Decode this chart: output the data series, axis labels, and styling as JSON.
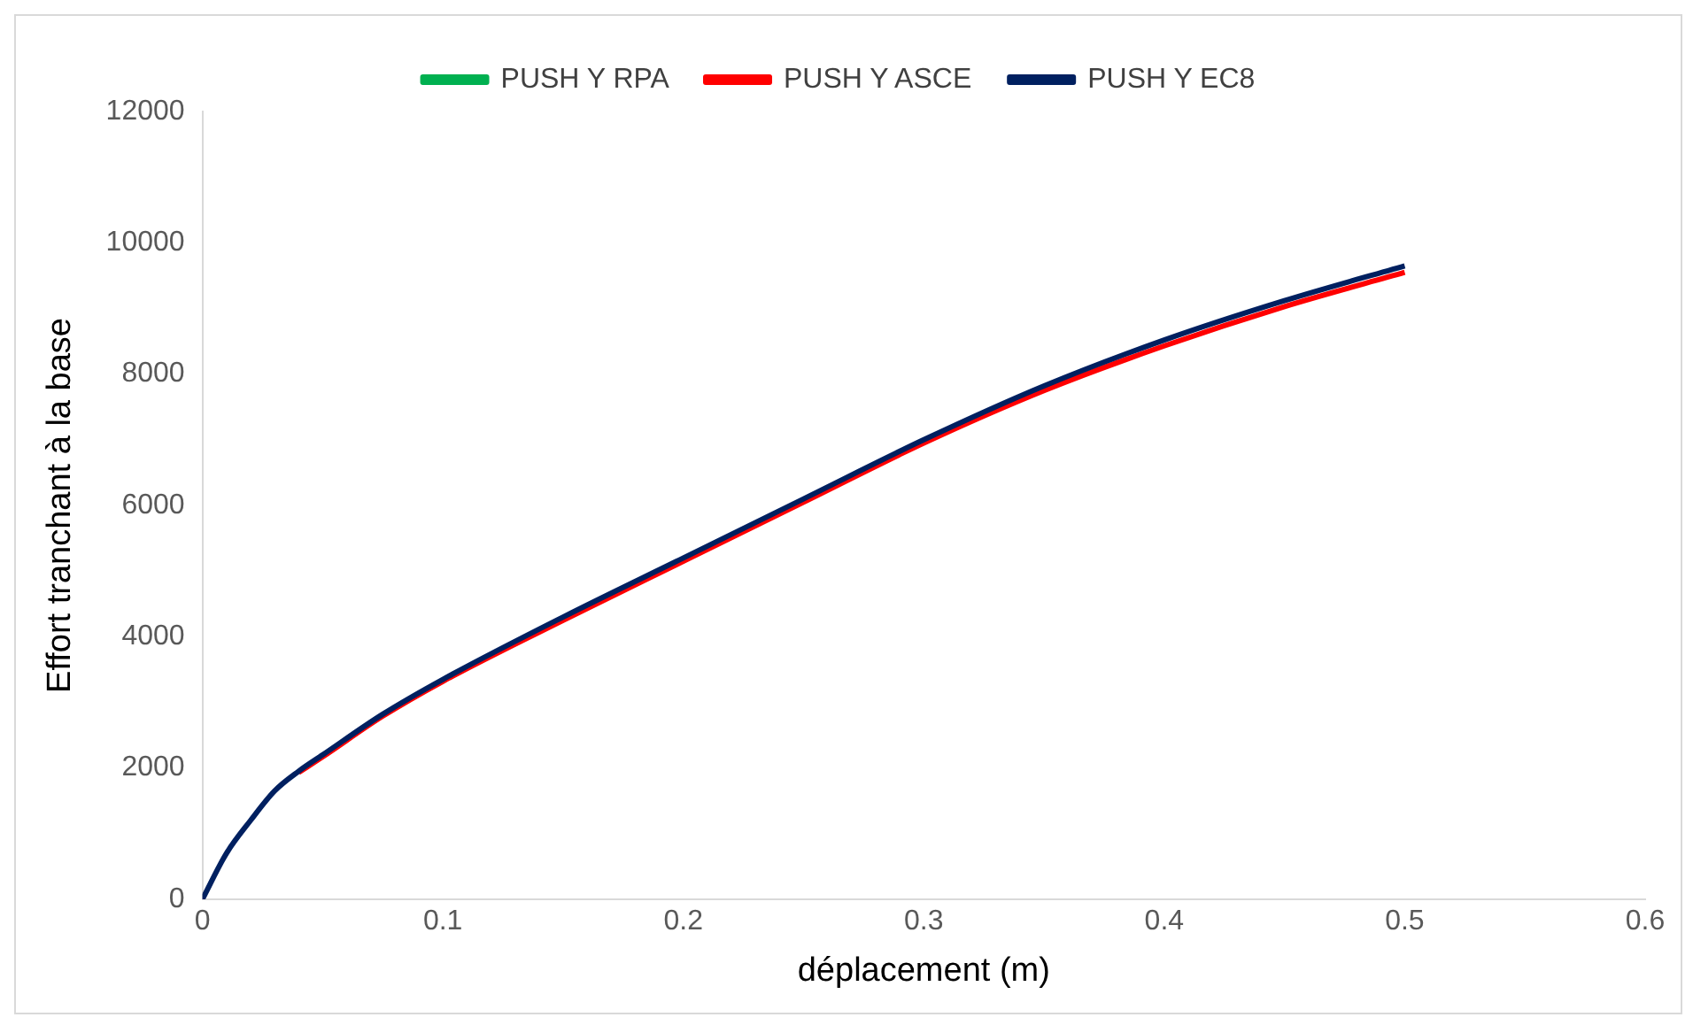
{
  "chart_data": {
    "type": "line",
    "xlabel": "déplacement (m)",
    "ylabel": "Effort tranchant à la base",
    "x": [
      0,
      0.01,
      0.02,
      0.03,
      0.04,
      0.05,
      0.075,
      0.1,
      0.15,
      0.2,
      0.25,
      0.3,
      0.35,
      0.4,
      0.45,
      0.5
    ],
    "series": [
      {
        "name": "PUSH Y RPA",
        "color": "#00b050",
        "values": [
          null,
          null,
          null,
          null,
          null,
          null,
          null,
          null,
          null,
          null,
          null,
          null,
          null,
          null,
          null,
          null
        ]
      },
      {
        "name": "PUSH Y ASCE",
        "color": "#ff0000",
        "values": [
          null,
          null,
          null,
          null,
          1930,
          2170,
          2790,
          3320,
          4250,
          5150,
          6050,
          6950,
          7750,
          8430,
          9030,
          9550
        ]
      },
      {
        "name": "PUSH Y EC8",
        "color": "#002060",
        "values": [
          0,
          700,
          1200,
          1650,
          1950,
          2200,
          2820,
          3350,
          4300,
          5200,
          6100,
          7000,
          7820,
          8520,
          9120,
          9650
        ]
      }
    ],
    "xlim": [
      0,
      0.6
    ],
    "xticks": [
      0,
      0.1,
      0.2,
      0.3,
      0.4,
      0.5,
      0.6
    ],
    "ylim": [
      0,
      12000
    ],
    "yticks": [
      0,
      2000,
      4000,
      6000,
      8000,
      10000,
      12000
    ],
    "legend": "top",
    "marker": "none",
    "line_style": "solid"
  }
}
